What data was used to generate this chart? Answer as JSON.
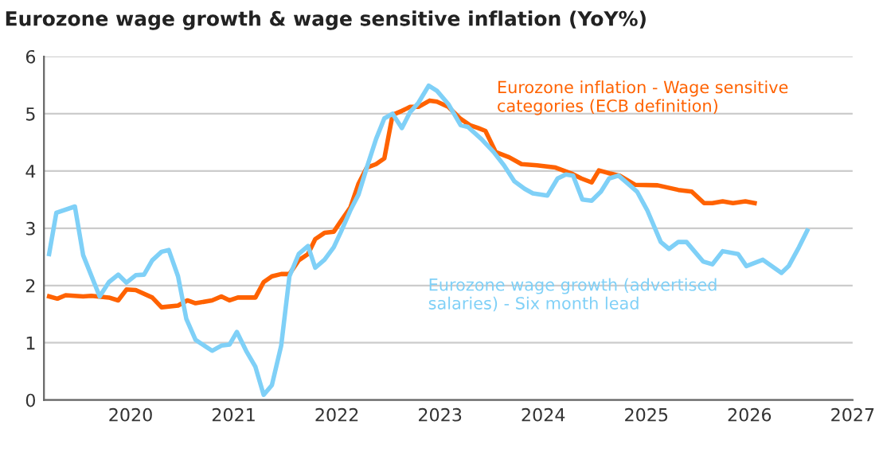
{
  "chart_data": {
    "type": "line",
    "title": "Eurozone wage growth & wage sensitive inflation (YoY%)",
    "xlim": [
      2019.16,
      2027
    ],
    "xticks": [
      2020,
      2021,
      2022,
      2023,
      2024,
      2025,
      2026,
      2027
    ],
    "ylim": [
      0,
      6
    ],
    "yticks": [
      0,
      1,
      2,
      3,
      4,
      5,
      6
    ],
    "grid": "y",
    "legend": false,
    "marker": "none",
    "line_style": "solid",
    "series": [
      {
        "name": "Eurozone inflation - Wage sensitive\ncategories (ECB definition)",
        "color": "#ff6200",
        "x": [
          2019.21,
          2019.29,
          2019.37,
          2019.54,
          2019.62,
          2019.79,
          2019.88,
          2019.96,
          2020.05,
          2020.21,
          2020.3,
          2020.46,
          2020.55,
          2020.63,
          2020.79,
          2020.88,
          2020.96,
          2021.04,
          2021.21,
          2021.29,
          2021.37,
          2021.46,
          2021.54,
          2021.63,
          2021.72,
          2021.79,
          2021.88,
          2021.97,
          2022.04,
          2022.13,
          2022.21,
          2022.29,
          2022.38,
          2022.46,
          2022.54,
          2022.63,
          2022.71,
          2022.79,
          2022.9,
          2022.97,
          2023.08,
          2023.2,
          2023.29,
          2023.37,
          2023.44,
          2023.54,
          2023.67,
          2023.79,
          2023.94,
          2024.12,
          2024.27,
          2024.37,
          2024.47,
          2024.54,
          2024.64,
          2024.74,
          2024.89,
          2025.11,
          2025.31,
          2025.44,
          2025.56,
          2025.64,
          2025.74,
          2025.84,
          2025.96,
          2026.05
        ],
        "values": [
          1.81,
          1.77,
          1.83,
          1.81,
          1.82,
          1.79,
          1.74,
          1.93,
          1.92,
          1.79,
          1.62,
          1.65,
          1.74,
          1.69,
          1.74,
          1.81,
          1.74,
          1.79,
          1.79,
          2.06,
          2.16,
          2.2,
          2.2,
          2.44,
          2.55,
          2.81,
          2.92,
          2.94,
          3.13,
          3.36,
          3.78,
          4.06,
          4.12,
          4.22,
          4.98,
          5.05,
          5.12,
          5.12,
          5.23,
          5.21,
          5.12,
          4.91,
          4.8,
          4.75,
          4.7,
          4.33,
          4.24,
          4.12,
          4.1,
          4.06,
          3.96,
          3.87,
          3.8,
          4.01,
          3.96,
          3.92,
          3.76,
          3.75,
          3.67,
          3.64,
          3.44,
          3.44,
          3.47,
          3.44,
          3.47,
          3.44
        ]
      },
      {
        "name": "Eurozone wage growth (advertised\nsalaries) - Six month lead",
        "color": "#7fd0f7",
        "x": [
          2019.21,
          2019.28,
          2019.46,
          2019.54,
          2019.7,
          2019.79,
          2019.88,
          2019.96,
          2020.05,
          2020.13,
          2020.21,
          2020.3,
          2020.37,
          2020.46,
          2020.54,
          2020.63,
          2020.79,
          2020.88,
          2020.96,
          2021.03,
          2021.12,
          2021.21,
          2021.29,
          2021.37,
          2021.46,
          2021.54,
          2021.63,
          2021.72,
          2021.79,
          2021.88,
          2021.97,
          2022.04,
          2022.13,
          2022.21,
          2022.29,
          2022.38,
          2022.46,
          2022.54,
          2022.63,
          2022.71,
          2022.79,
          2022.89,
          2022.97,
          2023.08,
          2023.2,
          2023.27,
          2023.4,
          2023.52,
          2023.62,
          2023.72,
          2023.82,
          2023.9,
          2024.04,
          2024.14,
          2024.22,
          2024.29,
          2024.38,
          2024.47,
          2024.56,
          2024.64,
          2024.73,
          2024.82,
          2024.91,
          2025.01,
          2025.14,
          2025.22,
          2025.31,
          2025.39,
          2025.55,
          2025.64,
          2025.74,
          2025.89,
          2025.97,
          2026.13,
          2026.31,
          2026.38,
          2026.48,
          2026.56
        ],
        "values": [
          2.55,
          3.27,
          3.38,
          2.53,
          1.81,
          2.06,
          2.19,
          2.05,
          2.18,
          2.19,
          2.44,
          2.59,
          2.62,
          2.16,
          1.42,
          1.05,
          0.86,
          0.95,
          0.97,
          1.19,
          0.86,
          0.58,
          0.09,
          0.26,
          0.95,
          2.16,
          2.55,
          2.69,
          2.31,
          2.45,
          2.67,
          2.94,
          3.31,
          3.59,
          4.06,
          4.56,
          4.92,
          5.0,
          4.75,
          5.03,
          5.19,
          5.49,
          5.4,
          5.17,
          4.8,
          4.77,
          4.56,
          4.33,
          4.1,
          3.82,
          3.69,
          3.61,
          3.57,
          3.87,
          3.94,
          3.92,
          3.5,
          3.48,
          3.64,
          3.87,
          3.92,
          3.78,
          3.64,
          3.31,
          2.76,
          2.64,
          2.76,
          2.76,
          2.42,
          2.37,
          2.6,
          2.55,
          2.34,
          2.45,
          2.22,
          2.34,
          2.67,
          2.96
        ]
      }
    ]
  }
}
